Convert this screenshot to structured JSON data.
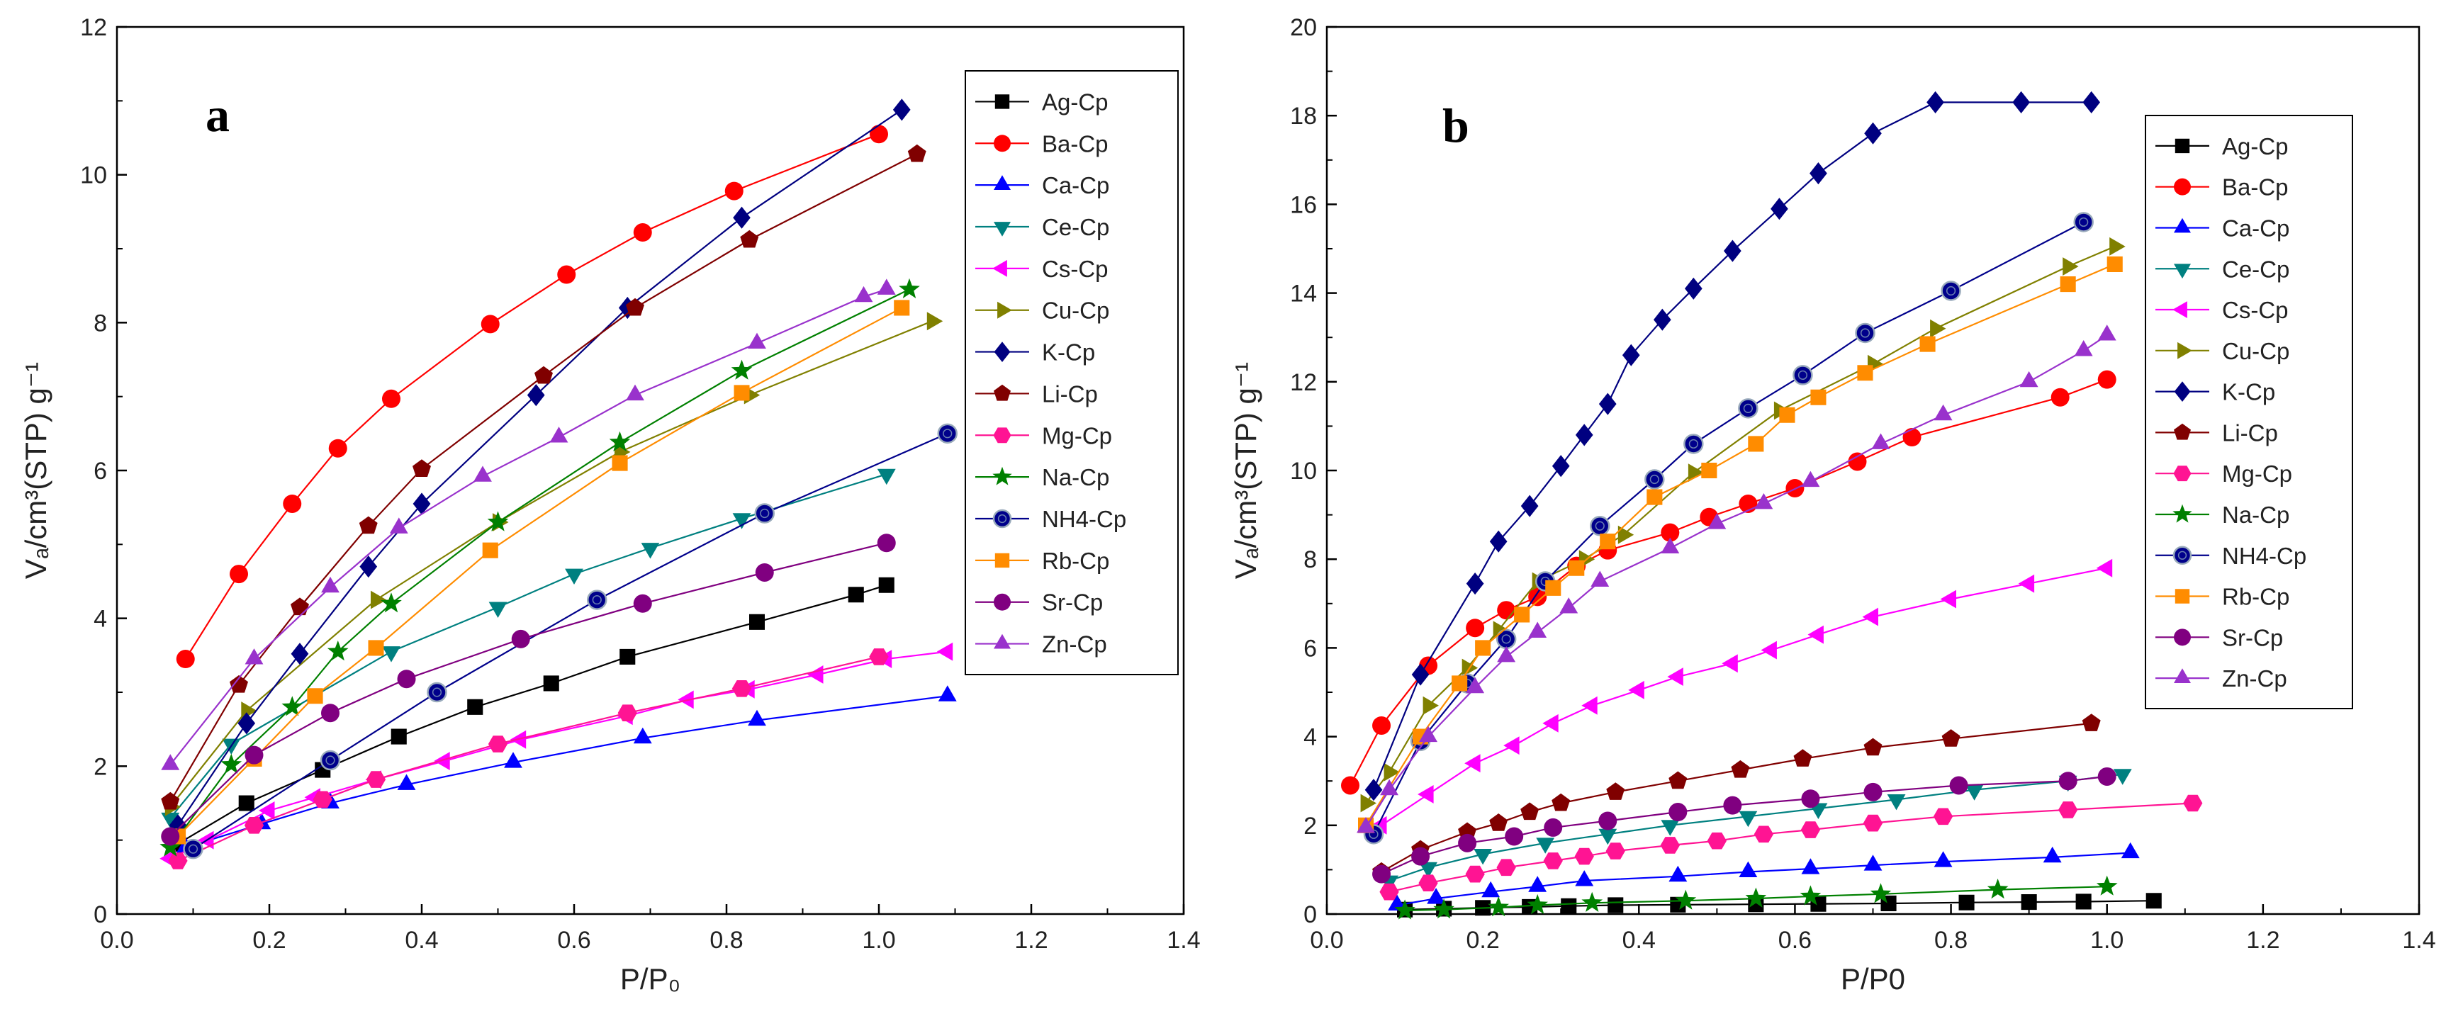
{
  "figure": {
    "panel_a_label": "a",
    "panel_b_label": "b"
  },
  "series_style": [
    {
      "name": "Ag-Cp",
      "color": "#000000",
      "marker": "square"
    },
    {
      "name": "Ba-Cp",
      "color": "#ff0000",
      "marker": "circle"
    },
    {
      "name": "Ca-Cp",
      "color": "#0000ff",
      "marker": "triangle-up"
    },
    {
      "name": "Ce-Cp",
      "color": "#008080",
      "marker": "triangle-down"
    },
    {
      "name": "Cs-Cp",
      "color": "#ff00ff",
      "marker": "triangle-left"
    },
    {
      "name": "Cu-Cp",
      "color": "#808000",
      "marker": "triangle-right"
    },
    {
      "name": "K-Cp",
      "color": "#000080",
      "marker": "diamond"
    },
    {
      "name": "Li-Cp",
      "color": "#800000",
      "marker": "pentagon"
    },
    {
      "name": "Mg-Cp",
      "color": "#ff1493",
      "marker": "hexagon"
    },
    {
      "name": "Na-Cp",
      "color": "#008000",
      "marker": "star"
    },
    {
      "name": "NH4-Cp",
      "color": "#00008b",
      "marker": "ringed-circle"
    },
    {
      "name": "Rb-Cp",
      "color": "#ff8c00",
      "marker": "square"
    },
    {
      "name": "Sr-Cp",
      "color": "#800080",
      "marker": "circle"
    },
    {
      "name": "Zn-Cp",
      "color": "#9932cc",
      "marker": "triangle-up"
    }
  ],
  "chart_data": [
    {
      "type": "line",
      "title": "",
      "panel": "a",
      "xlabel": "P/P₀",
      "ylabel": "Vₐ/cm³(STP) g⁻¹",
      "xlim": [
        0.0,
        1.4
      ],
      "ylim": [
        0,
        12
      ],
      "xticks": [
        "0.0",
        "0.2",
        "0.4",
        "0.6",
        "0.8",
        "1.0",
        "1.2",
        "1.4"
      ],
      "yticks": [
        "0",
        "2",
        "4",
        "6",
        "8",
        "10",
        "12"
      ],
      "legend_position": "top-right",
      "series": [
        {
          "name": "Ag-Cp",
          "x": [
            0.08,
            0.17,
            0.27,
            0.37,
            0.47,
            0.57,
            0.67,
            0.84,
            0.97,
            1.01
          ],
          "y": [
            0.95,
            1.5,
            1.95,
            2.4,
            2.8,
            3.12,
            3.48,
            3.95,
            4.32,
            4.45
          ]
        },
        {
          "name": "Ba-Cp",
          "x": [
            0.09,
            0.16,
            0.23,
            0.29,
            0.36,
            0.49,
            0.59,
            0.69,
            0.81,
            1.0
          ],
          "y": [
            3.45,
            4.6,
            5.55,
            6.3,
            6.97,
            7.98,
            8.65,
            9.22,
            9.78,
            10.55
          ]
        },
        {
          "name": "Ca-Cp",
          "x": [
            0.09,
            0.19,
            0.28,
            0.38,
            0.52,
            0.69,
            0.84,
            1.09
          ],
          "y": [
            0.9,
            1.22,
            1.5,
            1.75,
            2.05,
            2.38,
            2.62,
            2.95
          ]
        },
        {
          "name": "Ce-Cp",
          "x": [
            0.07,
            0.15,
            0.36,
            0.5,
            0.6,
            0.7,
            0.82,
            1.01
          ],
          "y": [
            1.3,
            2.3,
            3.55,
            4.15,
            4.6,
            4.95,
            5.35,
            5.95
          ]
        },
        {
          "name": "Cs-Cp",
          "x": [
            0.07,
            0.12,
            0.2,
            0.26,
            0.34,
            0.43,
            0.53,
            0.67,
            0.75,
            0.83,
            0.92,
            1.01,
            1.09
          ],
          "y": [
            0.75,
            1.0,
            1.4,
            1.58,
            1.82,
            2.07,
            2.36,
            2.68,
            2.9,
            3.04,
            3.24,
            3.45,
            3.55
          ]
        },
        {
          "name": "Cu-Cp",
          "x": [
            0.07,
            0.17,
            0.34,
            0.5,
            0.66,
            0.83,
            1.07
          ],
          "y": [
            1.45,
            2.75,
            4.25,
            5.3,
            6.25,
            7.02,
            8.02
          ]
        },
        {
          "name": "K-Cp",
          "x": [
            0.08,
            0.17,
            0.24,
            0.33,
            0.4,
            0.55,
            0.67,
            0.82,
            1.03
          ],
          "y": [
            1.2,
            2.58,
            3.52,
            4.7,
            5.55,
            7.02,
            8.2,
            9.42,
            10.88
          ]
        },
        {
          "name": "Li-Cp",
          "x": [
            0.07,
            0.16,
            0.24,
            0.33,
            0.4,
            0.56,
            0.68,
            0.83,
            1.05
          ],
          "y": [
            1.52,
            3.1,
            4.15,
            5.25,
            6.02,
            7.28,
            8.2,
            9.12,
            10.28
          ]
        },
        {
          "name": "Mg-Cp",
          "x": [
            0.08,
            0.18,
            0.27,
            0.34,
            0.5,
            0.67,
            0.82,
            1.0
          ],
          "y": [
            0.72,
            1.2,
            1.55,
            1.82,
            2.3,
            2.72,
            3.05,
            3.48
          ]
        },
        {
          "name": "Na-Cp",
          "x": [
            0.07,
            0.15,
            0.23,
            0.29,
            0.36,
            0.5,
            0.66,
            0.82,
            1.04
          ],
          "y": [
            0.9,
            2.02,
            2.8,
            3.55,
            4.2,
            5.3,
            6.38,
            7.35,
            8.45
          ]
        },
        {
          "name": "NH4-Cp",
          "x": [
            0.1,
            0.28,
            0.42,
            0.63,
            0.85,
            1.09
          ],
          "y": [
            0.88,
            2.08,
            3.0,
            4.25,
            5.42,
            6.5
          ]
        },
        {
          "name": "Rb-Cp",
          "x": [
            0.08,
            0.18,
            0.26,
            0.34,
            0.49,
            0.66,
            0.82,
            1.03
          ],
          "y": [
            1.05,
            2.1,
            2.95,
            3.6,
            4.92,
            6.1,
            7.05,
            8.2
          ]
        },
        {
          "name": "Sr-Cp",
          "x": [
            0.07,
            0.18,
            0.28,
            0.38,
            0.53,
            0.69,
            0.85,
            1.01
          ],
          "y": [
            1.05,
            2.15,
            2.72,
            3.18,
            3.72,
            4.2,
            4.62,
            5.02
          ]
        },
        {
          "name": "Zn-Cp",
          "x": [
            0.07,
            0.18,
            0.28,
            0.37,
            0.48,
            0.58,
            0.68,
            0.84,
            0.98,
            1.01
          ],
          "y": [
            2.02,
            3.45,
            4.42,
            5.22,
            5.92,
            6.45,
            7.02,
            7.72,
            8.35,
            8.45
          ]
        }
      ]
    },
    {
      "type": "line",
      "title": "",
      "panel": "b",
      "xlabel": "P/P0",
      "ylabel": "Vₐ/cm³(STP) g⁻¹",
      "xlim": [
        0.0,
        1.4
      ],
      "ylim": [
        0,
        20
      ],
      "xticks": [
        "0.0",
        "0.2",
        "0.4",
        "0.6",
        "0.8",
        "1.0",
        "1.2",
        "1.4"
      ],
      "yticks": [
        "0",
        "2",
        "4",
        "6",
        "8",
        "10",
        "12",
        "14",
        "16",
        "18",
        "20"
      ],
      "legend_position": "top-right",
      "series": [
        {
          "name": "Ag-Cp",
          "x": [
            0.1,
            0.15,
            0.2,
            0.26,
            0.31,
            0.37,
            0.45,
            0.55,
            0.63,
            0.72,
            0.82,
            0.9,
            0.97,
            1.06
          ],
          "y": [
            0.1,
            0.12,
            0.14,
            0.16,
            0.18,
            0.2,
            0.21,
            0.22,
            0.23,
            0.24,
            0.26,
            0.27,
            0.28,
            0.3
          ]
        },
        {
          "name": "Ba-Cp",
          "x": [
            0.03,
            0.07,
            0.13,
            0.19,
            0.23,
            0.27,
            0.32,
            0.36,
            0.44,
            0.49,
            0.54,
            0.6,
            0.68,
            0.75,
            0.94,
            1.0
          ],
          "y": [
            2.9,
            4.25,
            5.6,
            6.45,
            6.85,
            7.15,
            7.85,
            8.2,
            8.6,
            8.95,
            9.25,
            9.6,
            10.2,
            10.75,
            11.65,
            12.05
          ]
        },
        {
          "name": "Ca-Cp",
          "x": [
            0.09,
            0.14,
            0.21,
            0.27,
            0.33,
            0.45,
            0.54,
            0.62,
            0.7,
            0.79,
            0.93,
            1.03
          ],
          "y": [
            0.2,
            0.35,
            0.5,
            0.62,
            0.75,
            0.85,
            0.95,
            1.02,
            1.1,
            1.18,
            1.28,
            1.38
          ]
        },
        {
          "name": "Ce-Cp",
          "x": [
            0.08,
            0.13,
            0.2,
            0.28,
            0.36,
            0.44,
            0.54,
            0.63,
            0.73,
            0.83,
            0.95,
            1.02
          ],
          "y": [
            0.75,
            1.05,
            1.35,
            1.6,
            1.8,
            2.0,
            2.2,
            2.38,
            2.58,
            2.8,
            3.0,
            3.15
          ]
        },
        {
          "name": "Cs-Cp",
          "x": [
            0.07,
            0.13,
            0.19,
            0.24,
            0.29,
            0.34,
            0.4,
            0.45,
            0.52,
            0.57,
            0.63,
            0.7,
            0.8,
            0.9,
            1.0
          ],
          "y": [
            2.0,
            2.7,
            3.4,
            3.8,
            4.3,
            4.7,
            5.05,
            5.35,
            5.65,
            5.95,
            6.3,
            6.7,
            7.1,
            7.45,
            7.8
          ]
        },
        {
          "name": "Cu-Cp",
          "x": [
            0.05,
            0.08,
            0.13,
            0.18,
            0.22,
            0.27,
            0.33,
            0.38,
            0.47,
            0.58,
            0.7,
            0.78,
            0.95,
            1.01
          ],
          "y": [
            2.5,
            3.2,
            4.7,
            5.55,
            6.4,
            7.5,
            8.0,
            8.55,
            9.95,
            11.35,
            12.4,
            13.2,
            14.6,
            15.05
          ]
        },
        {
          "name": "K-Cp",
          "x": [
            0.06,
            0.12,
            0.19,
            0.22,
            0.26,
            0.3,
            0.33,
            0.36,
            0.39,
            0.43,
            0.47,
            0.52,
            0.58,
            0.63,
            0.7,
            0.78,
            0.89,
            0.98
          ],
          "y": [
            2.8,
            5.4,
            7.45,
            8.4,
            9.2,
            10.1,
            10.8,
            11.5,
            12.6,
            13.4,
            14.1,
            14.95,
            15.9,
            16.7,
            17.6,
            18.3,
            18.3,
            18.3
          ]
        },
        {
          "name": "Li-Cp",
          "x": [
            0.07,
            0.12,
            0.18,
            0.22,
            0.26,
            0.3,
            0.37,
            0.45,
            0.53,
            0.61,
            0.7,
            0.8,
            0.98
          ],
          "y": [
            0.95,
            1.45,
            1.85,
            2.05,
            2.3,
            2.5,
            2.75,
            3.0,
            3.25,
            3.5,
            3.75,
            3.95,
            4.3
          ]
        },
        {
          "name": "Mg-Cp",
          "x": [
            0.08,
            0.13,
            0.19,
            0.23,
            0.29,
            0.33,
            0.37,
            0.44,
            0.5,
            0.56,
            0.62,
            0.7,
            0.79,
            0.95,
            1.11
          ],
          "y": [
            0.5,
            0.7,
            0.9,
            1.05,
            1.2,
            1.3,
            1.42,
            1.55,
            1.65,
            1.8,
            1.9,
            2.05,
            2.2,
            2.35,
            2.5
          ]
        },
        {
          "name": "Na-Cp",
          "x": [
            0.1,
            0.15,
            0.22,
            0.27,
            0.34,
            0.46,
            0.55,
            0.62,
            0.71,
            0.86,
            1.0
          ],
          "y": [
            0.08,
            0.1,
            0.15,
            0.2,
            0.25,
            0.3,
            0.35,
            0.4,
            0.45,
            0.55,
            0.62
          ]
        },
        {
          "name": "NH4-Cp",
          "x": [
            0.06,
            0.12,
            0.18,
            0.23,
            0.28,
            0.35,
            0.42,
            0.47,
            0.54,
            0.61,
            0.69,
            0.8,
            0.97
          ],
          "y": [
            1.8,
            3.9,
            5.2,
            6.2,
            7.5,
            8.75,
            9.8,
            10.6,
            11.4,
            12.15,
            13.1,
            14.05,
            15.6
          ]
        },
        {
          "name": "Rb-Cp",
          "x": [
            0.05,
            0.12,
            0.17,
            0.2,
            0.25,
            0.29,
            0.32,
            0.36,
            0.42,
            0.49,
            0.55,
            0.59,
            0.63,
            0.69,
            0.77,
            0.95,
            1.01
          ],
          "y": [
            2.0,
            4.0,
            5.2,
            6.0,
            6.75,
            7.35,
            7.8,
            8.4,
            9.4,
            10.0,
            10.6,
            11.25,
            11.65,
            12.2,
            12.85,
            14.2,
            14.65
          ]
        },
        {
          "name": "Sr-Cp",
          "x": [
            0.07,
            0.12,
            0.18,
            0.24,
            0.29,
            0.36,
            0.45,
            0.52,
            0.62,
            0.7,
            0.81,
            0.95,
            1.0
          ],
          "y": [
            0.9,
            1.3,
            1.6,
            1.75,
            1.95,
            2.1,
            2.3,
            2.45,
            2.6,
            2.75,
            2.9,
            3.0,
            3.1
          ]
        },
        {
          "name": "Zn-Cp",
          "x": [
            0.05,
            0.08,
            0.13,
            0.19,
            0.23,
            0.27,
            0.31,
            0.35,
            0.44,
            0.5,
            0.56,
            0.62,
            0.71,
            0.79,
            0.9,
            0.97,
            1.0
          ],
          "y": [
            1.95,
            2.8,
            4.0,
            5.1,
            5.8,
            6.35,
            6.9,
            7.5,
            8.25,
            8.8,
            9.25,
            9.75,
            10.6,
            11.25,
            12.0,
            12.7,
            13.05
          ]
        }
      ]
    }
  ]
}
